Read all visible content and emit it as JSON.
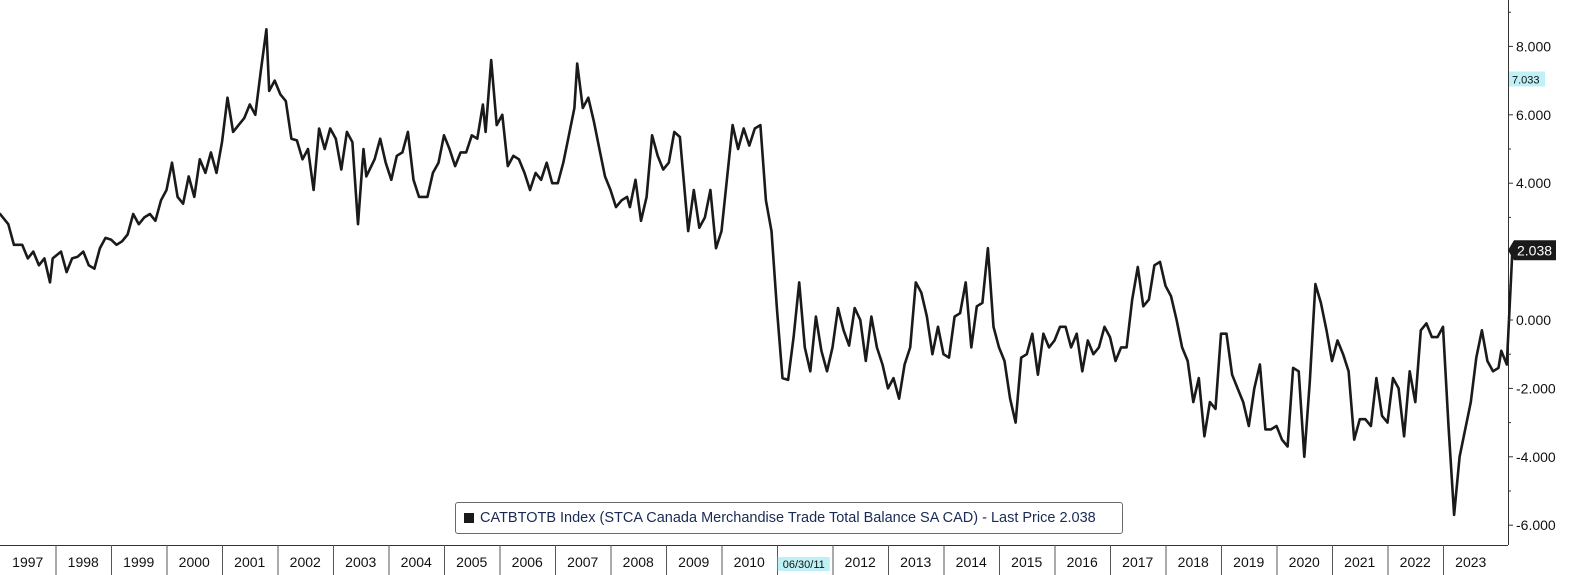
{
  "chart_data": {
    "type": "line",
    "legend_text": "CATBTOTB Index (STCA Canada Merchandise Trade Total Balance SA CAD) - Last Price 2.038",
    "series_color": "#1a1a1a",
    "last_price_label": "2.038",
    "marker_label": "7.033",
    "marker_value": 7.033,
    "marker_color": "#bff0f5",
    "date_marker_label": "06/30/11",
    "date_marker_value": 2011.5,
    "ylim": [
      -6.5,
      9.3
    ],
    "xlim": [
      1997.0,
      2024.3
    ],
    "y_ticks": [
      {
        "value": 8,
        "label": "8.000"
      },
      {
        "value": 6,
        "label": "6.000"
      },
      {
        "value": 4,
        "label": "4.000"
      },
      {
        "value": 2,
        "label": "2.000"
      },
      {
        "value": 0,
        "label": "0.000"
      },
      {
        "value": -2,
        "label": "-2.000"
      },
      {
        "value": -4,
        "label": "-4.000"
      },
      {
        "value": -6,
        "label": "-6.000"
      }
    ],
    "x_ticks": [
      {
        "year": 1997,
        "label": "1997"
      },
      {
        "year": 1998,
        "label": "1998"
      },
      {
        "year": 1999,
        "label": "1999"
      },
      {
        "year": 2000,
        "label": "2000"
      },
      {
        "year": 2001,
        "label": "2001"
      },
      {
        "year": 2002,
        "label": "2002"
      },
      {
        "year": 2003,
        "label": "2003"
      },
      {
        "year": 2004,
        "label": "2004"
      },
      {
        "year": 2005,
        "label": "2005"
      },
      {
        "year": 2006,
        "label": "2006"
      },
      {
        "year": 2007,
        "label": "2007"
      },
      {
        "year": 2008,
        "label": "2008"
      },
      {
        "year": 2009,
        "label": "2009"
      },
      {
        "year": 2010,
        "label": "2010"
      },
      {
        "year": 2011,
        "label": "2011"
      },
      {
        "year": 2012,
        "label": "2012"
      },
      {
        "year": 2013,
        "label": "2013"
      },
      {
        "year": 2014,
        "label": "2014"
      },
      {
        "year": 2015,
        "label": "2015"
      },
      {
        "year": 2016,
        "label": "2016"
      },
      {
        "year": 2017,
        "label": "2017"
      },
      {
        "year": 2018,
        "label": "2018"
      },
      {
        "year": 2019,
        "label": "2019"
      },
      {
        "year": 2020,
        "label": "2020"
      },
      {
        "year": 2021,
        "label": "2021"
      },
      {
        "year": 2022,
        "label": "2022"
      },
      {
        "year": 2023,
        "label": "2023"
      }
    ],
    "anchors": [
      [
        1997.0,
        3.1
      ],
      [
        1997.15,
        2.8
      ],
      [
        1997.25,
        2.2
      ],
      [
        1997.4,
        2.2
      ],
      [
        1997.5,
        1.8
      ],
      [
        1997.6,
        2.0
      ],
      [
        1997.7,
        1.6
      ],
      [
        1997.8,
        1.8
      ],
      [
        1997.9,
        1.1
      ],
      [
        1997.95,
        1.8
      ],
      [
        1998.1,
        2.0
      ],
      [
        1998.2,
        1.4
      ],
      [
        1998.3,
        1.8
      ],
      [
        1998.4,
        1.85
      ],
      [
        1998.5,
        2.0
      ],
      [
        1998.6,
        1.6
      ],
      [
        1998.7,
        1.5
      ],
      [
        1998.8,
        2.1
      ],
      [
        1998.9,
        2.4
      ],
      [
        1999.0,
        2.35
      ],
      [
        1999.1,
        2.2
      ],
      [
        1999.2,
        2.3
      ],
      [
        1999.3,
        2.5
      ],
      [
        1999.4,
        3.1
      ],
      [
        1999.5,
        2.8
      ],
      [
        1999.6,
        3.0
      ],
      [
        1999.7,
        3.1
      ],
      [
        1999.8,
        2.9
      ],
      [
        1999.9,
        3.5
      ],
      [
        2000.0,
        3.8
      ],
      [
        2000.1,
        4.6
      ],
      [
        2000.2,
        3.6
      ],
      [
        2000.3,
        3.4
      ],
      [
        2000.4,
        4.2
      ],
      [
        2000.5,
        3.6
      ],
      [
        2000.6,
        4.7
      ],
      [
        2000.7,
        4.3
      ],
      [
        2000.8,
        4.9
      ],
      [
        2000.9,
        4.3
      ],
      [
        2001.0,
        5.2
      ],
      [
        2001.1,
        6.5
      ],
      [
        2001.2,
        5.5
      ],
      [
        2001.3,
        5.7
      ],
      [
        2001.4,
        5.9
      ],
      [
        2001.5,
        6.3
      ],
      [
        2001.6,
        6.0
      ],
      [
        2001.7,
        7.3
      ],
      [
        2001.8,
        8.5
      ],
      [
        2001.85,
        6.7
      ],
      [
        2001.95,
        7.0
      ],
      [
        2002.05,
        6.6
      ],
      [
        2002.15,
        6.4
      ],
      [
        2002.25,
        5.3
      ],
      [
        2002.35,
        5.25
      ],
      [
        2002.45,
        4.7
      ],
      [
        2002.55,
        5.0
      ],
      [
        2002.65,
        3.8
      ],
      [
        2002.75,
        5.6
      ],
      [
        2002.85,
        5.0
      ],
      [
        2002.95,
        5.6
      ],
      [
        2003.05,
        5.3
      ],
      [
        2003.15,
        4.4
      ],
      [
        2003.25,
        5.5
      ],
      [
        2003.35,
        5.2
      ],
      [
        2003.45,
        2.8
      ],
      [
        2003.55,
        5.0
      ],
      [
        2003.6,
        4.2
      ],
      [
        2003.75,
        4.7
      ],
      [
        2003.85,
        5.3
      ],
      [
        2003.95,
        4.6
      ],
      [
        2004.05,
        4.1
      ],
      [
        2004.15,
        4.8
      ],
      [
        2004.25,
        4.9
      ],
      [
        2004.35,
        5.5
      ],
      [
        2004.45,
        4.1
      ],
      [
        2004.55,
        3.6
      ],
      [
        2004.7,
        3.6
      ],
      [
        2004.8,
        4.3
      ],
      [
        2004.9,
        4.6
      ],
      [
        2005.0,
        5.4
      ],
      [
        2005.1,
        5.0
      ],
      [
        2005.2,
        4.5
      ],
      [
        2005.3,
        4.9
      ],
      [
        2005.4,
        4.9
      ],
      [
        2005.5,
        5.4
      ],
      [
        2005.6,
        5.3
      ],
      [
        2005.7,
        6.3
      ],
      [
        2005.75,
        5.5
      ],
      [
        2005.85,
        7.6
      ],
      [
        2005.95,
        5.7
      ],
      [
        2006.05,
        6.0
      ],
      [
        2006.15,
        4.5
      ],
      [
        2006.25,
        4.8
      ],
      [
        2006.35,
        4.7
      ],
      [
        2006.45,
        4.3
      ],
      [
        2006.55,
        3.8
      ],
      [
        2006.65,
        4.3
      ],
      [
        2006.75,
        4.1
      ],
      [
        2006.85,
        4.6
      ],
      [
        2006.95,
        4.0
      ],
      [
        2007.05,
        4.0
      ],
      [
        2007.15,
        4.6
      ],
      [
        2007.25,
        5.4
      ],
      [
        2007.35,
        6.2
      ],
      [
        2007.4,
        7.5
      ],
      [
        2007.5,
        6.2
      ],
      [
        2007.6,
        6.5
      ],
      [
        2007.7,
        5.8
      ],
      [
        2007.8,
        5.0
      ],
      [
        2007.9,
        4.2
      ],
      [
        2008.0,
        3.8
      ],
      [
        2008.1,
        3.3
      ],
      [
        2008.2,
        3.5
      ],
      [
        2008.3,
        3.6
      ],
      [
        2008.35,
        3.3
      ],
      [
        2008.45,
        4.1
      ],
      [
        2008.55,
        2.9
      ],
      [
        2008.65,
        3.6
      ],
      [
        2008.75,
        5.4
      ],
      [
        2008.85,
        4.8
      ],
      [
        2008.95,
        4.4
      ],
      [
        2009.05,
        4.6
      ],
      [
        2009.15,
        5.5
      ],
      [
        2009.25,
        5.35
      ],
      [
        2009.4,
        2.6
      ],
      [
        2009.5,
        3.8
      ],
      [
        2009.6,
        2.7
      ],
      [
        2009.7,
        3.0
      ],
      [
        2009.8,
        3.8
      ],
      [
        2009.9,
        2.1
      ],
      [
        2010.0,
        2.6
      ],
      [
        2010.2,
        5.7
      ],
      [
        2010.3,
        5.0
      ],
      [
        2010.4,
        5.6
      ],
      [
        2010.5,
        5.1
      ],
      [
        2010.6,
        5.6
      ],
      [
        2010.7,
        5.7
      ],
      [
        2010.8,
        3.5
      ],
      [
        2010.9,
        2.6
      ],
      [
        2011.0,
        0.3
      ],
      [
        2011.1,
        -1.7
      ],
      [
        2011.2,
        -1.75
      ],
      [
        2011.3,
        -0.5
      ],
      [
        2011.4,
        1.1
      ],
      [
        2011.5,
        -0.8
      ],
      [
        2011.6,
        -1.5
      ],
      [
        2011.7,
        0.1
      ],
      [
        2011.8,
        -0.9
      ],
      [
        2011.9,
        -1.5
      ],
      [
        2012.0,
        -0.8
      ],
      [
        2012.1,
        0.35
      ],
      [
        2012.2,
        -0.3
      ],
      [
        2012.3,
        -0.75
      ],
      [
        2012.4,
        0.35
      ],
      [
        2012.5,
        0.0
      ],
      [
        2012.6,
        -1.2
      ],
      [
        2012.7,
        0.1
      ],
      [
        2012.8,
        -0.8
      ],
      [
        2012.9,
        -1.3
      ],
      [
        2013.0,
        -2.0
      ],
      [
        2013.1,
        -1.7
      ],
      [
        2013.2,
        -2.3
      ],
      [
        2013.3,
        -1.3
      ],
      [
        2013.4,
        -0.8
      ],
      [
        2013.5,
        1.1
      ],
      [
        2013.6,
        0.8
      ],
      [
        2013.7,
        0.1
      ],
      [
        2013.8,
        -1.0
      ],
      [
        2013.9,
        -0.2
      ],
      [
        2014.0,
        -1.0
      ],
      [
        2014.1,
        -1.1
      ],
      [
        2014.2,
        0.1
      ],
      [
        2014.3,
        0.2
      ],
      [
        2014.4,
        1.1
      ],
      [
        2014.5,
        -0.8
      ],
      [
        2014.6,
        0.4
      ],
      [
        2014.7,
        0.5
      ],
      [
        2014.8,
        2.1
      ],
      [
        2014.9,
        -0.2
      ],
      [
        2015.0,
        -0.8
      ],
      [
        2015.1,
        -1.2
      ],
      [
        2015.2,
        -2.3
      ],
      [
        2015.3,
        -3.0
      ],
      [
        2015.4,
        -1.1
      ],
      [
        2015.5,
        -1.0
      ],
      [
        2015.6,
        -0.4
      ],
      [
        2015.7,
        -1.6
      ],
      [
        2015.8,
        -0.4
      ],
      [
        2015.9,
        -0.8
      ],
      [
        2016.0,
        -0.6
      ],
      [
        2016.1,
        -0.2
      ],
      [
        2016.2,
        -0.2
      ],
      [
        2016.3,
        -0.8
      ],
      [
        2016.4,
        -0.4
      ],
      [
        2016.5,
        -1.5
      ],
      [
        2016.6,
        -0.6
      ],
      [
        2016.7,
        -1.0
      ],
      [
        2016.8,
        -0.8
      ],
      [
        2016.9,
        -0.2
      ],
      [
        2017.0,
        -0.5
      ],
      [
        2017.1,
        -1.2
      ],
      [
        2017.2,
        -0.8
      ],
      [
        2017.3,
        -0.8
      ],
      [
        2017.4,
        0.6
      ],
      [
        2017.5,
        1.55
      ],
      [
        2017.6,
        0.4
      ],
      [
        2017.7,
        0.6
      ],
      [
        2017.8,
        1.6
      ],
      [
        2017.9,
        1.7
      ],
      [
        2018.0,
        1.0
      ],
      [
        2018.1,
        0.7
      ],
      [
        2018.2,
        0.0
      ],
      [
        2018.3,
        -0.8
      ],
      [
        2018.4,
        -1.2
      ],
      [
        2018.5,
        -2.4
      ],
      [
        2018.6,
        -1.7
      ],
      [
        2018.7,
        -3.4
      ],
      [
        2018.8,
        -2.4
      ],
      [
        2018.9,
        -2.6
      ],
      [
        2019.0,
        -0.4
      ],
      [
        2019.1,
        -0.4
      ],
      [
        2019.2,
        -1.6
      ],
      [
        2019.3,
        -2.0
      ],
      [
        2019.4,
        -2.4
      ],
      [
        2019.5,
        -3.1
      ],
      [
        2019.6,
        -2.0
      ],
      [
        2019.7,
        -1.3
      ],
      [
        2019.8,
        -3.2
      ],
      [
        2019.9,
        -3.2
      ],
      [
        2020.0,
        -3.1
      ],
      [
        2020.1,
        -3.5
      ],
      [
        2020.2,
        -3.7
      ],
      [
        2020.3,
        -1.4
      ],
      [
        2020.4,
        -1.5
      ],
      [
        2020.5,
        -4.0
      ],
      [
        2020.6,
        -1.8
      ],
      [
        2020.7,
        1.05
      ],
      [
        2020.8,
        0.5
      ],
      [
        2020.9,
        -0.3
      ],
      [
        2021.0,
        -1.2
      ],
      [
        2021.1,
        -0.6
      ],
      [
        2021.2,
        -1.0
      ],
      [
        2021.3,
        -1.5
      ],
      [
        2021.4,
        -3.5
      ],
      [
        2021.5,
        -2.9
      ],
      [
        2021.6,
        -2.9
      ],
      [
        2021.7,
        -3.1
      ],
      [
        2021.8,
        -1.7
      ],
      [
        2021.9,
        -2.8
      ],
      [
        2022.0,
        -3.0
      ],
      [
        2022.1,
        -1.7
      ],
      [
        2022.2,
        -2.0
      ],
      [
        2022.3,
        -3.4
      ],
      [
        2022.4,
        -1.5
      ],
      [
        2022.5,
        -2.4
      ],
      [
        2022.6,
        -0.3
      ],
      [
        2022.7,
        -0.1
      ],
      [
        2022.8,
        -0.5
      ],
      [
        2022.9,
        -0.5
      ],
      [
        2023.0,
        -0.2
      ],
      [
        2023.1,
        -3.1
      ],
      [
        2023.2,
        -5.7
      ],
      [
        2023.3,
        -4.0
      ],
      [
        2023.4,
        -3.2
      ],
      [
        2023.5,
        -2.4
      ],
      [
        2023.6,
        -1.1
      ],
      [
        2023.7,
        -0.3
      ],
      [
        2023.8,
        -1.2
      ],
      [
        2023.9,
        -1.5
      ],
      [
        2024.0,
        -1.4
      ],
      [
        2024.05,
        -0.9
      ],
      [
        2024.15,
        -1.3
      ],
      [
        2024.25,
        2.038
      ]
    ]
  }
}
